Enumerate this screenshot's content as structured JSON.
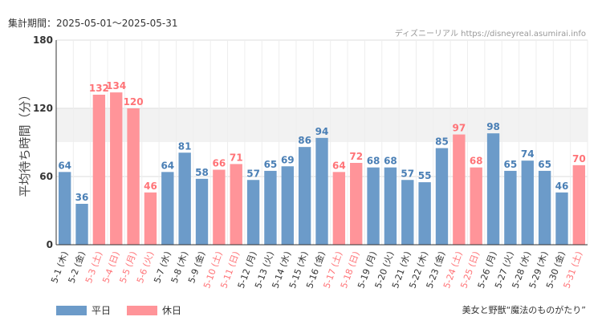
{
  "header": {
    "period": "集計期間：2025-05-01〜2025-05-31",
    "credit": "ディズニーリアル https://disneyreal.asumirai.info"
  },
  "footer": {
    "credit": "美女と野獣“魔法のものがたり”"
  },
  "colors": {
    "weekday": "#6c9bc9",
    "holiday": "#ff9499",
    "weekday_text": "#4a7fb5",
    "holiday_text": "#ff7377"
  },
  "chart_data": {
    "type": "bar",
    "ylabel": "平均待ち時間（分）",
    "ylim": [
      0,
      180
    ],
    "yticks": [
      0,
      60,
      120,
      180
    ],
    "grid": true,
    "legend_position": "bottom-left",
    "series": [
      {
        "name": "平日",
        "key": "weekday"
      },
      {
        "name": "休日",
        "key": "holiday"
      }
    ],
    "categories": [
      "5-1 (木)",
      "5-2 (金)",
      "5-3 (土)",
      "5-4 (日)",
      "5-5 (月)",
      "5-6 (火)",
      "5-7 (水)",
      "5-8 (木)",
      "5-9 (金)",
      "5-10 (土)",
      "5-11 (日)",
      "5-12 (月)",
      "5-13 (火)",
      "5-14 (水)",
      "5-15 (木)",
      "5-16 (金)",
      "5-17 (土)",
      "5-18 (日)",
      "5-19 (月)",
      "5-20 (火)",
      "5-21 (水)",
      "5-22 (木)",
      "5-23 (金)",
      "5-24 (土)",
      "5-25 (日)",
      "5-26 (月)",
      "5-27 (火)",
      "5-28 (水)",
      "5-29 (木)",
      "5-30 (金)",
      "5-31 (土)"
    ],
    "values": [
      64,
      36,
      132,
      134,
      120,
      46,
      64,
      81,
      58,
      66,
      71,
      57,
      65,
      69,
      86,
      94,
      64,
      72,
      68,
      68,
      57,
      55,
      85,
      97,
      68,
      98,
      65,
      74,
      65,
      46,
      70
    ],
    "day_type": [
      "weekday",
      "weekday",
      "holiday",
      "holiday",
      "holiday",
      "holiday",
      "weekday",
      "weekday",
      "weekday",
      "holiday",
      "holiday",
      "weekday",
      "weekday",
      "weekday",
      "weekday",
      "weekday",
      "holiday",
      "holiday",
      "weekday",
      "weekday",
      "weekday",
      "weekday",
      "weekday",
      "holiday",
      "holiday",
      "weekday",
      "weekday",
      "weekday",
      "weekday",
      "weekday",
      "holiday"
    ]
  }
}
